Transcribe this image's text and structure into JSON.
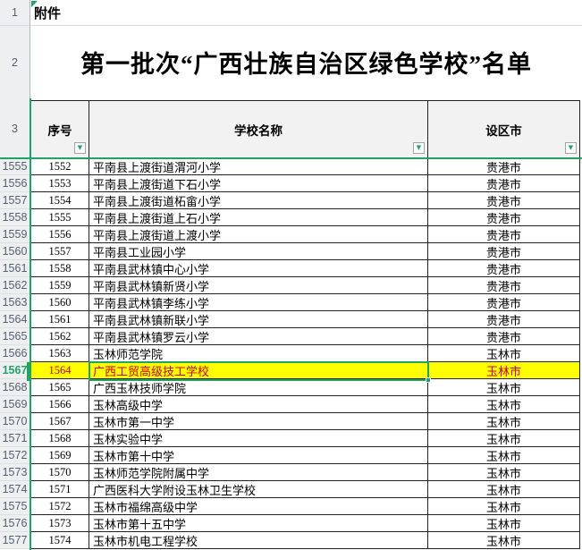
{
  "app": {
    "type": "spreadsheet-grid"
  },
  "attachment_label": "附件",
  "title": "第一批次“广西壮族自治区绿色学校”名单",
  "gutter_rows": {
    "r1": "1",
    "r2": "2",
    "r3": "3"
  },
  "columns": [
    {
      "key": "serial",
      "label": "序号"
    },
    {
      "key": "name",
      "label": "学校名称"
    },
    {
      "key": "city",
      "label": "设区市"
    }
  ],
  "icons": {
    "filter": "▼"
  },
  "selection": {
    "active_row_number": "1567",
    "active_cell_value": "广西工贸高级技工学校"
  },
  "colors": {
    "accent_green": "#21a366",
    "highlight_fill": "#ffff00",
    "highlight_text": "#cc0000",
    "grid_line": "#222222",
    "gutter_bg": "#edeff1",
    "header_bg": "#f2f2f2"
  },
  "rows": [
    {
      "row_number": "1555",
      "serial": "1552",
      "name": "平南县上渡街道渭河小学",
      "city": "贵港市",
      "highlighted": false
    },
    {
      "row_number": "1556",
      "serial": "1553",
      "name": "平南县上渡街道下石小学",
      "city": "贵港市",
      "highlighted": false
    },
    {
      "row_number": "1557",
      "serial": "1554",
      "name": "平南县上渡街道柘畲小学",
      "city": "贵港市",
      "highlighted": false
    },
    {
      "row_number": "1558",
      "serial": "1555",
      "name": "平南县上渡街道上石小学",
      "city": "贵港市",
      "highlighted": false
    },
    {
      "row_number": "1559",
      "serial": "1556",
      "name": "平南县上渡街道上渡小学",
      "city": "贵港市",
      "highlighted": false
    },
    {
      "row_number": "1560",
      "serial": "1557",
      "name": "平南县工业园小学",
      "city": "贵港市",
      "highlighted": false
    },
    {
      "row_number": "1561",
      "serial": "1558",
      "name": "平南县武林镇中心小学",
      "city": "贵港市",
      "highlighted": false
    },
    {
      "row_number": "1562",
      "serial": "1559",
      "name": "平南县武林镇新贤小学",
      "city": "贵港市",
      "highlighted": false
    },
    {
      "row_number": "1563",
      "serial": "1560",
      "name": "平南县武林镇李练小学",
      "city": "贵港市",
      "highlighted": false
    },
    {
      "row_number": "1564",
      "serial": "1561",
      "name": "平南县武林镇新联小学",
      "city": "贵港市",
      "highlighted": false
    },
    {
      "row_number": "1565",
      "serial": "1562",
      "name": "平南县武林镇罗云小学",
      "city": "贵港市",
      "highlighted": false
    },
    {
      "row_number": "1566",
      "serial": "1563",
      "name": "玉林师范学院",
      "city": "玉林市",
      "highlighted": false
    },
    {
      "row_number": "1567",
      "serial": "1564",
      "name": "广西工贸高级技工学校",
      "city": "玉林市",
      "highlighted": true
    },
    {
      "row_number": "1568",
      "serial": "1565",
      "name": "广西玉林技师学院",
      "city": "玉林市",
      "highlighted": false
    },
    {
      "row_number": "1569",
      "serial": "1566",
      "name": "玉林高级中学",
      "city": "玉林市",
      "highlighted": false
    },
    {
      "row_number": "1570",
      "serial": "1567",
      "name": "玉林市第一中学",
      "city": "玉林市",
      "highlighted": false
    },
    {
      "row_number": "1571",
      "serial": "1568",
      "name": "玉林实验中学",
      "city": "玉林市",
      "highlighted": false
    },
    {
      "row_number": "1572",
      "serial": "1569",
      "name": "玉林市第十中学",
      "city": "玉林市",
      "highlighted": false
    },
    {
      "row_number": "1573",
      "serial": "1570",
      "name": "玉林师范学院附属中学",
      "city": "玉林市",
      "highlighted": false
    },
    {
      "row_number": "1574",
      "serial": "1571",
      "name": "广西医科大学附设玉林卫生学校",
      "city": "玉林市",
      "highlighted": false
    },
    {
      "row_number": "1575",
      "serial": "1572",
      "name": "玉林市福绵高级中学",
      "city": "玉林市",
      "highlighted": false
    },
    {
      "row_number": "1576",
      "serial": "1573",
      "name": "玉林市第十五中学",
      "city": "玉林市",
      "highlighted": false
    },
    {
      "row_number": "1577",
      "serial": "1574",
      "name": "玉林市机电工程学校",
      "city": "玉林市",
      "highlighted": false
    }
  ]
}
